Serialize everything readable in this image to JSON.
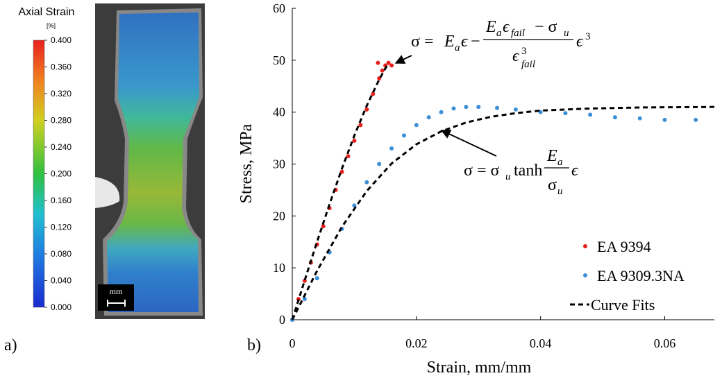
{
  "chart_data": [
    {
      "type": "colorbar",
      "title": "Axial Strain",
      "unit": "[%]",
      "panel_label": "a)",
      "scale_label": "mm",
      "ylim": [
        0,
        0.4
      ],
      "yticks": [
        {
          "value": 0,
          "label": "0.000"
        },
        {
          "value": 0.04,
          "label": "0.040"
        },
        {
          "value": 0.08,
          "label": "0.080"
        },
        {
          "value": 0.12,
          "label": "0.120"
        },
        {
          "value": 0.16,
          "label": "0.160"
        },
        {
          "value": 0.2,
          "label": "0.200"
        },
        {
          "value": 0.24,
          "label": "0.240"
        },
        {
          "value": 0.28,
          "label": "0.280"
        },
        {
          "value": 0.32,
          "label": "0.320"
        },
        {
          "value": 0.36,
          "label": "0.360"
        },
        {
          "value": 0.4,
          "label": "0.400"
        }
      ]
    },
    {
      "type": "scatter",
      "panel_label": "b)",
      "xlabel": "Strain, mm/mm",
      "ylabel": "Stress, MPa",
      "xlim": [
        0,
        0.068
      ],
      "ylim": [
        0,
        60
      ],
      "xticks": [
        0,
        0.02,
        0.04,
        0.06
      ],
      "yticks": [
        0,
        10,
        20,
        30,
        40,
        50,
        60
      ],
      "legend": "lower right",
      "series": [
        {
          "name": "EA 9394",
          "color": "#e8201c",
          "marker": "circle",
          "x": [
            0,
            0.001,
            0.002,
            0.003,
            0.004,
            0.005,
            0.006,
            0.007,
            0.008,
            0.009,
            0.01,
            0.011,
            0.012,
            0.013,
            0.014,
            0.0145,
            0.015,
            0.0155,
            0.0138,
            0.016
          ],
          "values": [
            0,
            4,
            7.5,
            11,
            14.5,
            18,
            21.5,
            25,
            28.5,
            31.5,
            34.5,
            37.5,
            40.5,
            43.5,
            46.5,
            48,
            49,
            49.5,
            49.5,
            49
          ]
        },
        {
          "name": "EA 9309.3NA",
          "color": "#3a8fd6",
          "marker": "circle",
          "x": [
            0,
            0.002,
            0.004,
            0.006,
            0.008,
            0.01,
            0.012,
            0.014,
            0.016,
            0.018,
            0.02,
            0.022,
            0.024,
            0.026,
            0.028,
            0.03,
            0.033,
            0.036,
            0.04,
            0.044,
            0.048,
            0.052,
            0.056,
            0.06,
            0.065
          ],
          "values": [
            0,
            4,
            8,
            13,
            17.5,
            22,
            26.5,
            30,
            33,
            35.5,
            37.5,
            39,
            40,
            40.7,
            41,
            41,
            40.8,
            40.5,
            40,
            39.8,
            39.5,
            39,
            38.8,
            38.5,
            38.5
          ]
        },
        {
          "name": "Curve Fits",
          "color": "#000000",
          "line_style": "dashed",
          "x": [
            0,
            0.002,
            0.004,
            0.006,
            0.008,
            0.01,
            0.012,
            0.014,
            0.0155,
            null,
            0,
            0.004,
            0.008,
            0.012,
            0.016,
            0.02,
            0.024,
            0.028,
            0.032,
            0.036,
            0.04,
            0.048,
            0.056,
            0.068
          ],
          "values": [
            0,
            7.58,
            15.04,
            22.25,
            29.11,
            35.48,
            41.24,
            46.27,
            49.5,
            null,
            0,
            9.43,
            17.9,
            24.8,
            30.1,
            33.8,
            36.3,
            38.0,
            39.1,
            39.8,
            40.3,
            40.7,
            40.9,
            41.0
          ]
        }
      ],
      "annotations": [
        [
          "σ = ",
          "E",
          "a",
          "ϵ",
          "−",
          "E",
          "a",
          "ϵ",
          "fail",
          "− σ",
          "u",
          "ϵ",
          "3",
          "fail",
          "ϵ",
          "3"
        ],
        [
          "σ = σ",
          "u",
          "tanh",
          "E",
          "a",
          "σ",
          "u",
          "ϵ"
        ]
      ]
    }
  ]
}
